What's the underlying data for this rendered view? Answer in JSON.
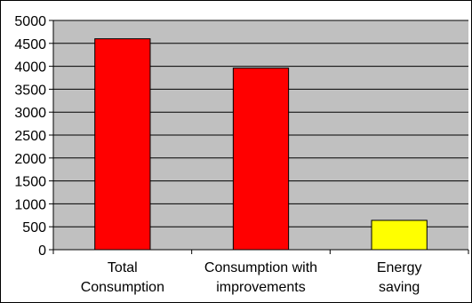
{
  "chart_data": {
    "type": "bar",
    "title": "",
    "xlabel": "",
    "ylabel": "",
    "categories": [
      [
        "Total",
        "Consumption"
      ],
      [
        "Consumption with",
        "improvements"
      ],
      [
        "Energy",
        "saving"
      ]
    ],
    "values": [
      4600,
      3960,
      640
    ],
    "bar_colors": [
      "#ff0000",
      "#ff0000",
      "#ffff00"
    ],
    "ylim": [
      0,
      5000
    ],
    "yticks": [
      0,
      500,
      1000,
      1500,
      2000,
      2500,
      3000,
      3500,
      4000,
      4500,
      5000
    ],
    "grid": true,
    "plot_background": "#c0c0c0",
    "legend": "none"
  }
}
